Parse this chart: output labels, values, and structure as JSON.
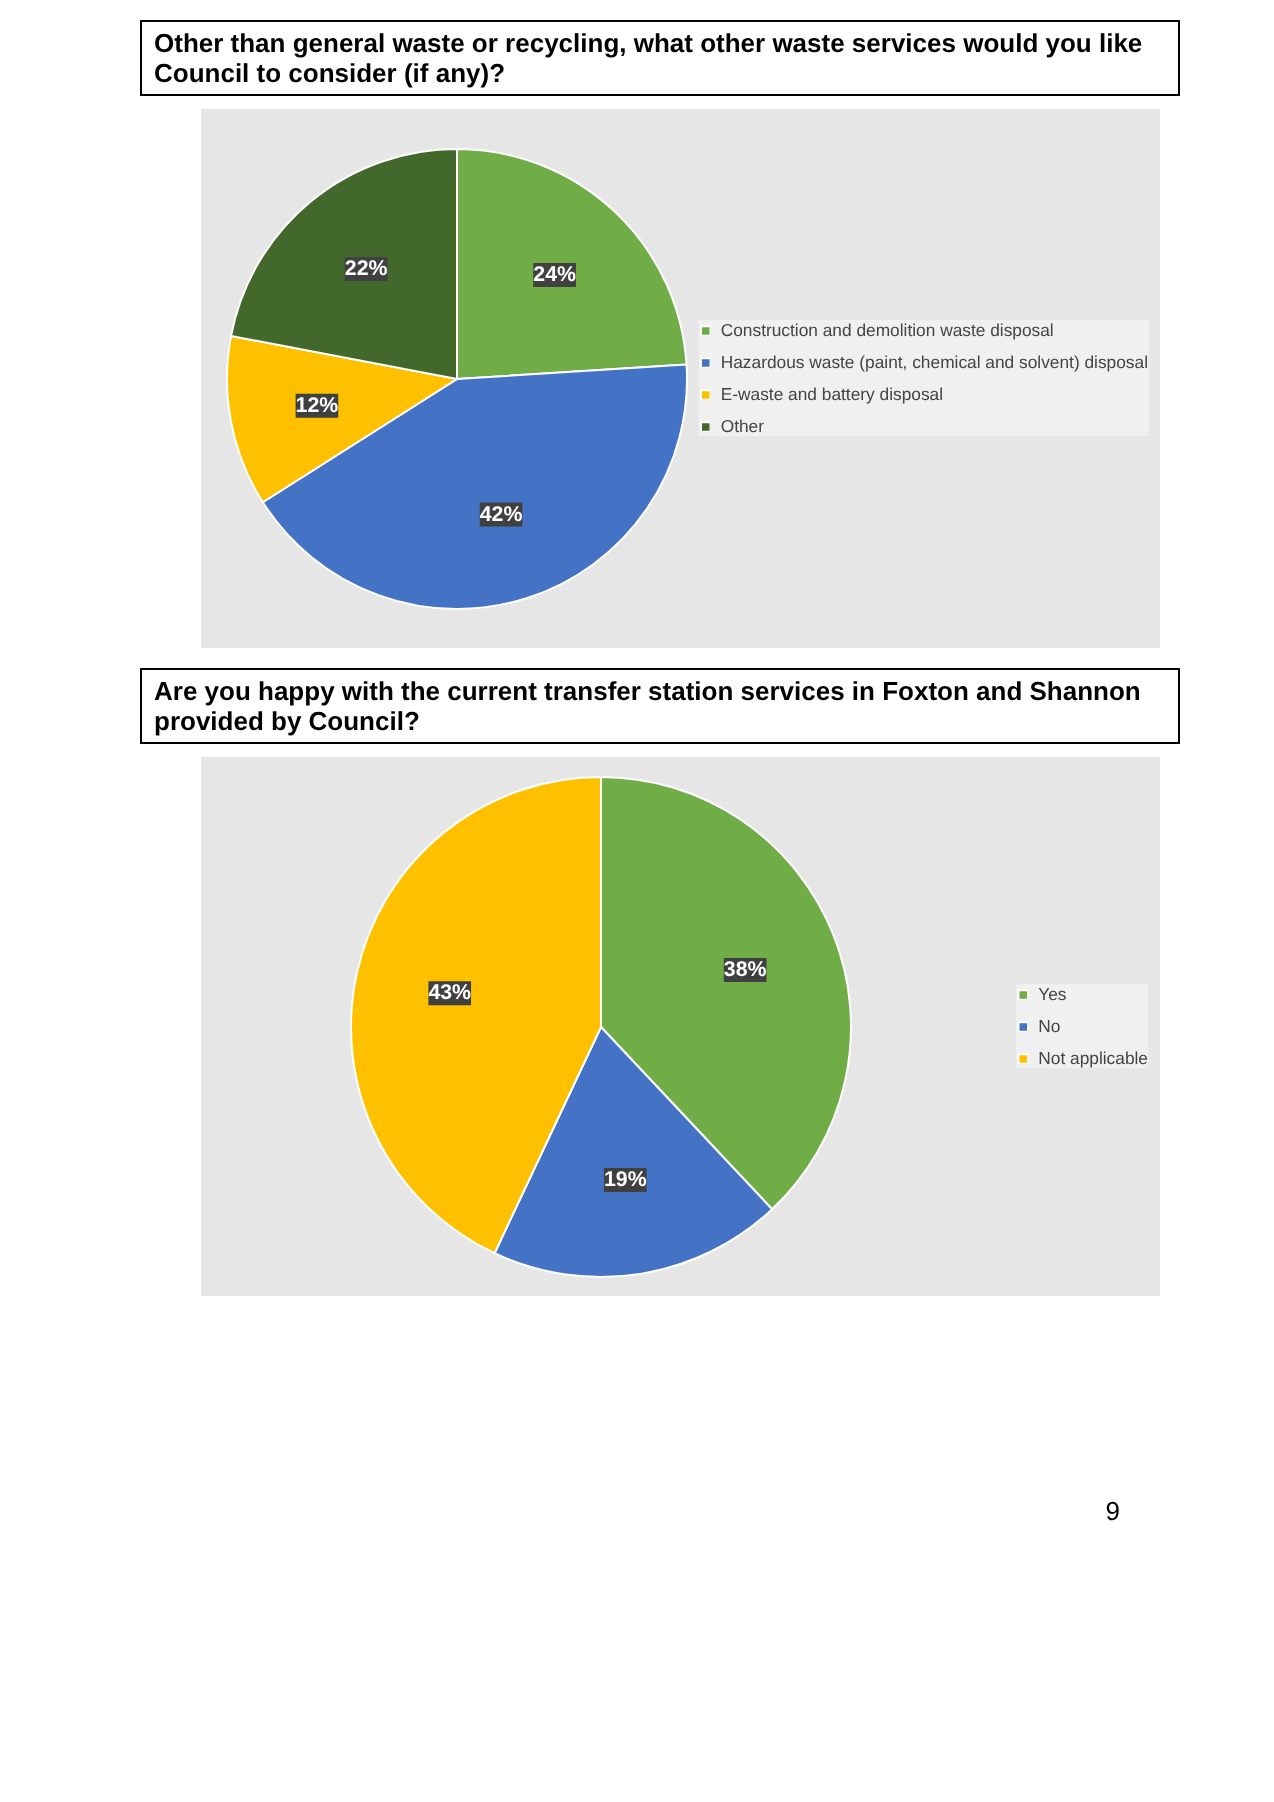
{
  "chart_data": [
    {
      "type": "pie",
      "title": "Other than general waste or recycling, what other waste services would you like Council to consider (if any)?",
      "categories": [
        "Construction and demolition waste disposal",
        "Hazardous waste (paint, chemical and solvent) disposal",
        "E-waste and battery disposal",
        "Other"
      ],
      "values": [
        24,
        42,
        12,
        22
      ],
      "colors": [
        "#70ad47",
        "#4472c4",
        "#ffc000",
        "#43682b"
      ],
      "value_labels": [
        "24%",
        "42%",
        "12%",
        "22%"
      ],
      "legend": "right"
    },
    {
      "type": "pie",
      "title": "Are you happy with the current transfer station services in Foxton and Shannon provided by Council?",
      "categories": [
        "Yes",
        "No",
        "Not applicable"
      ],
      "values": [
        38,
        19,
        43
      ],
      "colors": [
        "#70ad47",
        "#4472c4",
        "#ffc000"
      ],
      "value_labels": [
        "38%",
        "19%",
        "43%"
      ],
      "legend": "right",
      "annotations": [
        "9"
      ]
    }
  ]
}
